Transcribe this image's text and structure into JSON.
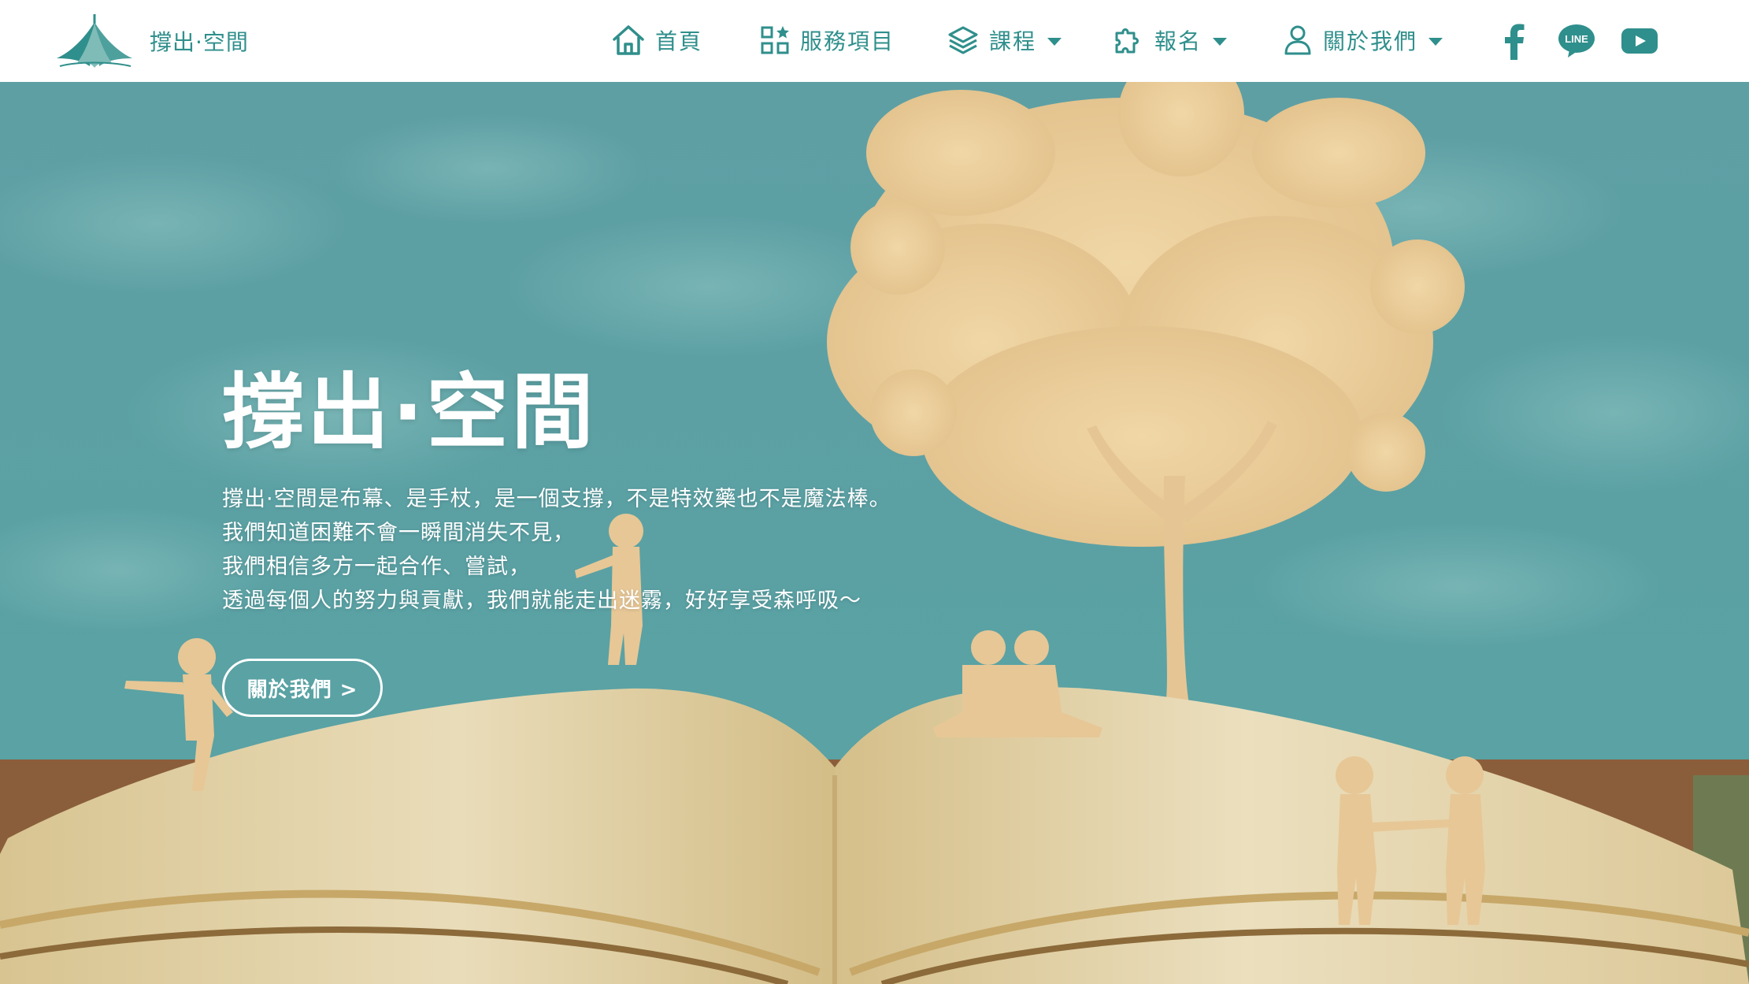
{
  "brand": {
    "name": "撐出·空間"
  },
  "nav": {
    "items": [
      {
        "label": "首頁",
        "icon": "home-icon",
        "has_dropdown": false
      },
      {
        "label": "服務項目",
        "icon": "grid-star-icon",
        "has_dropdown": false
      },
      {
        "label": "課程",
        "icon": "layers-icon",
        "has_dropdown": true
      },
      {
        "label": "報名",
        "icon": "puzzle-icon",
        "has_dropdown": true
      },
      {
        "label": "關於我們",
        "icon": "user-icon",
        "has_dropdown": true
      }
    ],
    "social": [
      {
        "name": "facebook-icon"
      },
      {
        "name": "line-icon",
        "label": "LINE"
      },
      {
        "name": "youtube-icon"
      }
    ]
  },
  "hero": {
    "title": "撐出·空間",
    "lines": [
      "撐出·空間是布幕、是手杖，是一個支撐，不是特效藥也不是魔法棒。",
      "我們知道困難不會一瞬間消失不見，",
      "我們相信多方一起合作、嘗試，",
      "透過每個人的努力與貢獻，我們就能走出迷霧，好好享受森呼吸～"
    ],
    "button_label": "關於我們 >"
  },
  "colors": {
    "brand": "#2f8f8c",
    "hero_sky": "#5aa3a5",
    "paper": "#e8d8b0",
    "silhouette": "#e9c99a"
  }
}
